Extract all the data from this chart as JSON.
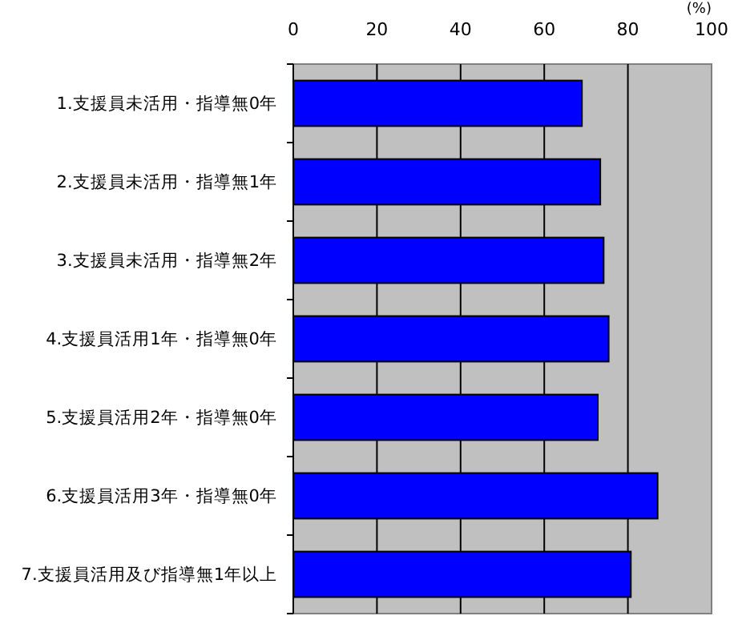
{
  "chart_data": {
    "type": "bar",
    "orientation": "horizontal",
    "xlabel": "(%)",
    "categories": [
      "1.支援員未活用・指導無0年",
      "2.支援員未活用・指導無1年",
      "3.支援員未活用・指導無2年",
      "4.支援員活用1年・指導無0年",
      "5.支援員活用2年・指導無0年",
      "6.支援員活用3年・指導無0年",
      "7.支援員活用及び指導無1年以上"
    ],
    "values": [
      69,
      73.4,
      74.2,
      75.4,
      72.8,
      87.1,
      80.7
    ],
    "color": "#0000ff",
    "xlim": [
      0,
      100
    ],
    "xticks": [
      0,
      20,
      40,
      60,
      80,
      100
    ],
    "grid": "x"
  }
}
